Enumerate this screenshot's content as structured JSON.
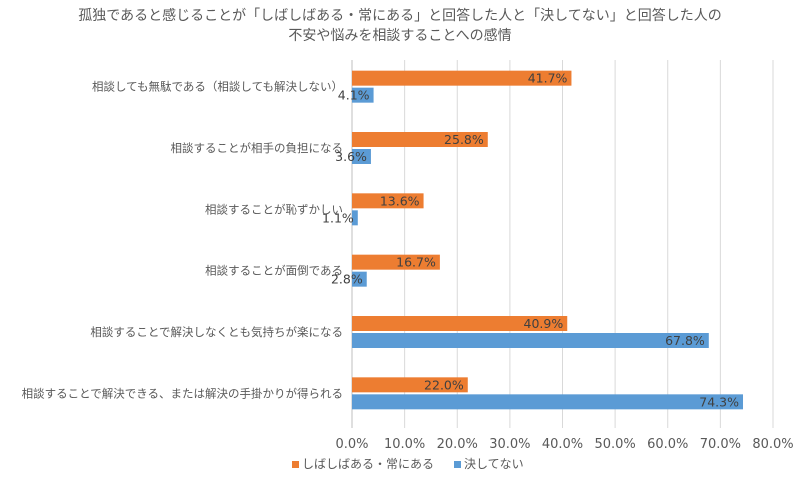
{
  "chart_data": {
    "type": "bar",
    "orientation": "horizontal",
    "title_lines": [
      "孤独であると感じることが「しばしばある・常にある」と回答した人と「決してない」と回答した人の",
      "不安や悩みを相談することへの感情"
    ],
    "categories": [
      "相談しても無駄である（相談しても解決しない）",
      "相談することが相手の負担になる",
      "相談することが恥ずかしい",
      "相談することが面倒である",
      "相談することで解決しなくとも気持ちが楽になる",
      "相談することで解決できる、または解決の手掛かりが得られる"
    ],
    "series": [
      {
        "name": "しばしばある・常にある",
        "color": "#ED7D31",
        "values": [
          41.7,
          25.8,
          13.6,
          16.7,
          40.9,
          22.0
        ],
        "labels": [
          "41.7%",
          "25.8%",
          "13.6%",
          "16.7%",
          "40.9%",
          "22.0%"
        ]
      },
      {
        "name": "決してない",
        "color": "#5B9BD5",
        "values": [
          4.1,
          3.6,
          1.1,
          2.8,
          67.8,
          74.3
        ],
        "labels": [
          "4.1%",
          "3.6%",
          "1.1%",
          "2.8%",
          "67.8%",
          "74.3%"
        ]
      }
    ],
    "xlim": [
      0,
      80
    ],
    "x_ticks": [
      "0.0%",
      "10.0%",
      "20.0%",
      "30.0%",
      "40.0%",
      "50.0%",
      "60.0%",
      "70.0%",
      "80.0%"
    ],
    "grid": true,
    "legend_position": "bottom"
  }
}
